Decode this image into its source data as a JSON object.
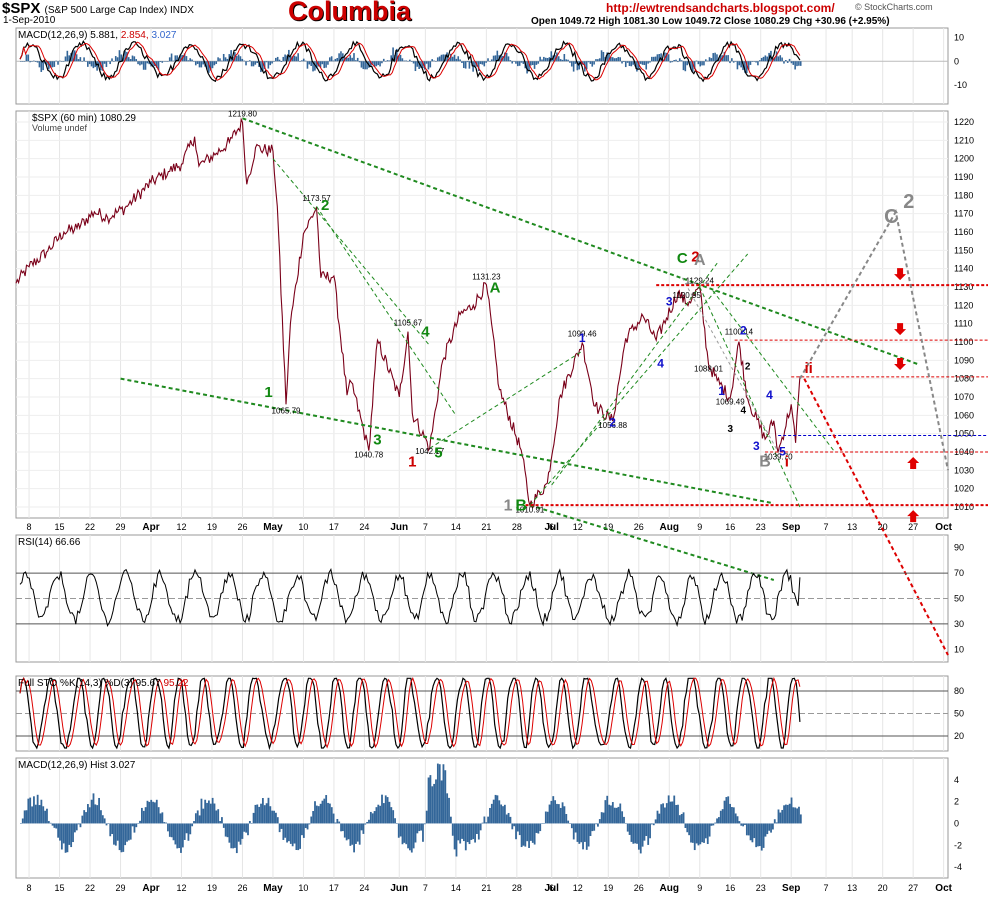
{
  "header": {
    "symbol": "$SPX",
    "name": "(S&P 500 Large Cap Index) INDX",
    "date": "1-Sep-2010",
    "brand": "Columbia",
    "website": "http://ewtrendsandcharts.blogspot.com/",
    "provider": "© StockCharts.com",
    "ohlc": "Open 1049.72  High 1081.30  Low 1049.72  Close 1080.29  Chg +30.96 (+2.95%)"
  },
  "colors": {
    "price": "#7a0019",
    "green_trend": "#1f8a1f",
    "red_level": "#dd0000",
    "grey_proj": "#888888",
    "blue_level": "#0000cc",
    "hist_fill": "#336699",
    "macd_line": "#000000",
    "signal_line": "#dd0000"
  },
  "chart_data": [
    {
      "type": "line",
      "id": "price",
      "title": "$SPX (60 min) 1080.29",
      "subtitle": "Volume undef",
      "y_ticks": [
        1010,
        1020,
        1030,
        1040,
        1050,
        1060,
        1070,
        1080,
        1090,
        1100,
        1110,
        1120,
        1130,
        1140,
        1150,
        1160,
        1170,
        1180,
        1190,
        1200,
        1210,
        1220
      ],
      "ylim": [
        1004,
        1226
      ],
      "x_tick_labels": [
        "8",
        "15",
        "22",
        "29",
        "Apr",
        "12",
        "19",
        "26",
        "May",
        "10",
        "17",
        "24",
        "Jun",
        "7",
        "14",
        "21",
        "28",
        "Jul",
        "6",
        "12",
        "19",
        "26",
        "Aug",
        "9",
        "16",
        "23",
        "Sep",
        "7",
        "13",
        "20",
        "27",
        "Oct"
      ],
      "x_range": [
        "2010-03-05",
        "2010-10-05"
      ],
      "x_ticks": [
        "2010-03-08",
        "2010-03-15",
        "2010-03-22",
        "2010-03-29",
        "2010-04-05",
        "2010-04-12",
        "2010-04-19",
        "2010-04-26",
        "2010-05-03",
        "2010-05-10",
        "2010-05-17",
        "2010-05-24",
        "2010-06-01",
        "2010-06-07",
        "2010-06-14",
        "2010-06-21",
        "2010-06-28",
        "2010-07-06",
        "2010-07-06",
        "2010-07-12",
        "2010-07-19",
        "2010-07-26",
        "2010-08-02",
        "2010-08-09",
        "2010-08-16",
        "2010-08-23",
        "2010-08-30",
        "2010-09-07",
        "2010-09-13",
        "2010-09-20",
        "2010-09-27",
        "2010-10-04"
      ],
      "series": [
        {
          "values": [
            [
              "2010-03-05",
              1132
            ],
            [
              "2010-03-08",
              1141
            ],
            [
              "2010-03-12",
              1149
            ],
            [
              "2010-03-16",
              1160
            ],
            [
              "2010-03-19",
              1162
            ],
            [
              "2010-03-23",
              1171
            ],
            [
              "2010-03-26",
              1168
            ],
            [
              "2010-03-30",
              1173
            ],
            [
              "2010-04-05",
              1187
            ],
            [
              "2010-04-09",
              1193
            ],
            [
              "2010-04-12",
              1197
            ],
            [
              "2010-04-15",
              1212
            ],
            [
              "2010-04-16",
              1196
            ],
            [
              "2010-04-20",
              1203
            ],
            [
              "2010-04-23",
              1209
            ],
            [
              "2010-04-26",
              1219.8
            ],
            [
              "2010-04-27",
              1186
            ],
            [
              "2010-04-29",
              1206
            ],
            [
              "2010-05-03",
              1204
            ],
            [
              "2010-05-04",
              1174
            ],
            [
              "2010-05-06",
              1066
            ],
            [
              "2010-05-07",
              1110
            ],
            [
              "2010-05-10",
              1159
            ],
            [
              "2010-05-13",
              1173.57
            ],
            [
              "2010-05-14",
              1135
            ],
            [
              "2010-05-17",
              1136
            ],
            [
              "2010-05-20",
              1071
            ],
            [
              "2010-05-21",
              1078
            ],
            [
              "2010-05-25",
              1040.78
            ],
            [
              "2010-05-27",
              1101
            ],
            [
              "2010-06-01",
              1070
            ],
            [
              "2010-06-03",
              1105.67
            ],
            [
              "2010-06-04",
              1061
            ],
            [
              "2010-06-08",
              1042.17
            ],
            [
              "2010-06-11",
              1090
            ],
            [
              "2010-06-15",
              1115
            ],
            [
              "2010-06-18",
              1120
            ],
            [
              "2010-06-21",
              1131.23
            ],
            [
              "2010-06-24",
              1074
            ],
            [
              "2010-06-29",
              1041
            ],
            [
              "2010-07-01",
              1010.91
            ],
            [
              "2010-07-05",
              1023
            ],
            [
              "2010-07-08",
              1071
            ],
            [
              "2010-07-13",
              1099.46
            ],
            [
              "2010-07-16",
              1065
            ],
            [
              "2010-07-20",
              1056.88
            ],
            [
              "2010-07-23",
              1102
            ],
            [
              "2010-07-27",
              1114
            ],
            [
              "2010-07-30",
              1101
            ],
            [
              "2010-08-04",
              1127
            ],
            [
              "2010-08-06",
              1120.95
            ],
            [
              "2010-08-09",
              1129.24
            ],
            [
              "2010-08-11",
              1088
            ],
            [
              "2010-08-13",
              1079
            ],
            [
              "2010-08-16",
              1069.49
            ],
            [
              "2010-08-18",
              1100.14
            ],
            [
              "2010-08-20",
              1069
            ],
            [
              "2010-08-24",
              1047
            ],
            [
              "2010-08-26",
              1057
            ],
            [
              "2010-08-27",
              1039.7
            ],
            [
              "2010-08-30",
              1066
            ],
            [
              "2010-08-31",
              1045
            ],
            [
              "2010-09-01",
              1081.3
            ]
          ]
        }
      ],
      "price_labels": [
        "1219.80",
        "1173.57",
        "1065.79",
        "1105.67",
        "1040.78",
        "1042.17",
        "1131.23",
        "1010.91",
        "1099.46",
        "1056.88",
        "1120.95",
        "1129.24",
        "1088.01",
        "1100.14",
        "1069.49",
        "1039.70"
      ],
      "wave_labels_green": [
        "2",
        "4",
        "1",
        "3",
        "5",
        "A",
        "C"
      ],
      "wave_labels_red": [
        "1",
        "2",
        "i",
        "ii"
      ],
      "wave_labels_blue": [
        "3",
        "1",
        "2",
        "4",
        "1",
        "2",
        "4",
        "3",
        "5"
      ],
      "wave_labels_black": [
        "2",
        "3",
        "4"
      ],
      "wave_labels_grey": [
        "1",
        "B",
        "A",
        "B",
        "C",
        "2"
      ],
      "horizontal_levels": [
        1131,
        1101,
        1081,
        1049,
        1040,
        1011
      ]
    },
    {
      "type": "line",
      "id": "macd-top",
      "title": "MACD(12,26,9)",
      "values_text": [
        "5.881",
        "2.854",
        "3.027"
      ],
      "y_ticks": [
        10,
        0,
        -10
      ],
      "ylim": [
        -18,
        14
      ]
    },
    {
      "type": "line",
      "id": "rsi",
      "title": "RSI(14) 66.66",
      "y_ticks": [
        90,
        70,
        50,
        30,
        10
      ],
      "ylim": [
        0,
        100
      ],
      "levels": [
        70,
        50,
        30
      ]
    },
    {
      "type": "line",
      "id": "stoch",
      "title": "Full STO %K(14,3) %D(3) 95.67",
      "values_text": [
        "95.22"
      ],
      "y_ticks": [
        80,
        50,
        20
      ],
      "ylim": [
        0,
        100
      ],
      "levels": [
        80,
        50,
        20
      ]
    },
    {
      "type": "bar",
      "id": "macd-hist",
      "title": "MACD(12,26,9) Hist 3.027",
      "y_ticks": [
        4,
        2,
        0,
        -2,
        -4
      ],
      "ylim": [
        -5,
        6
      ]
    }
  ]
}
